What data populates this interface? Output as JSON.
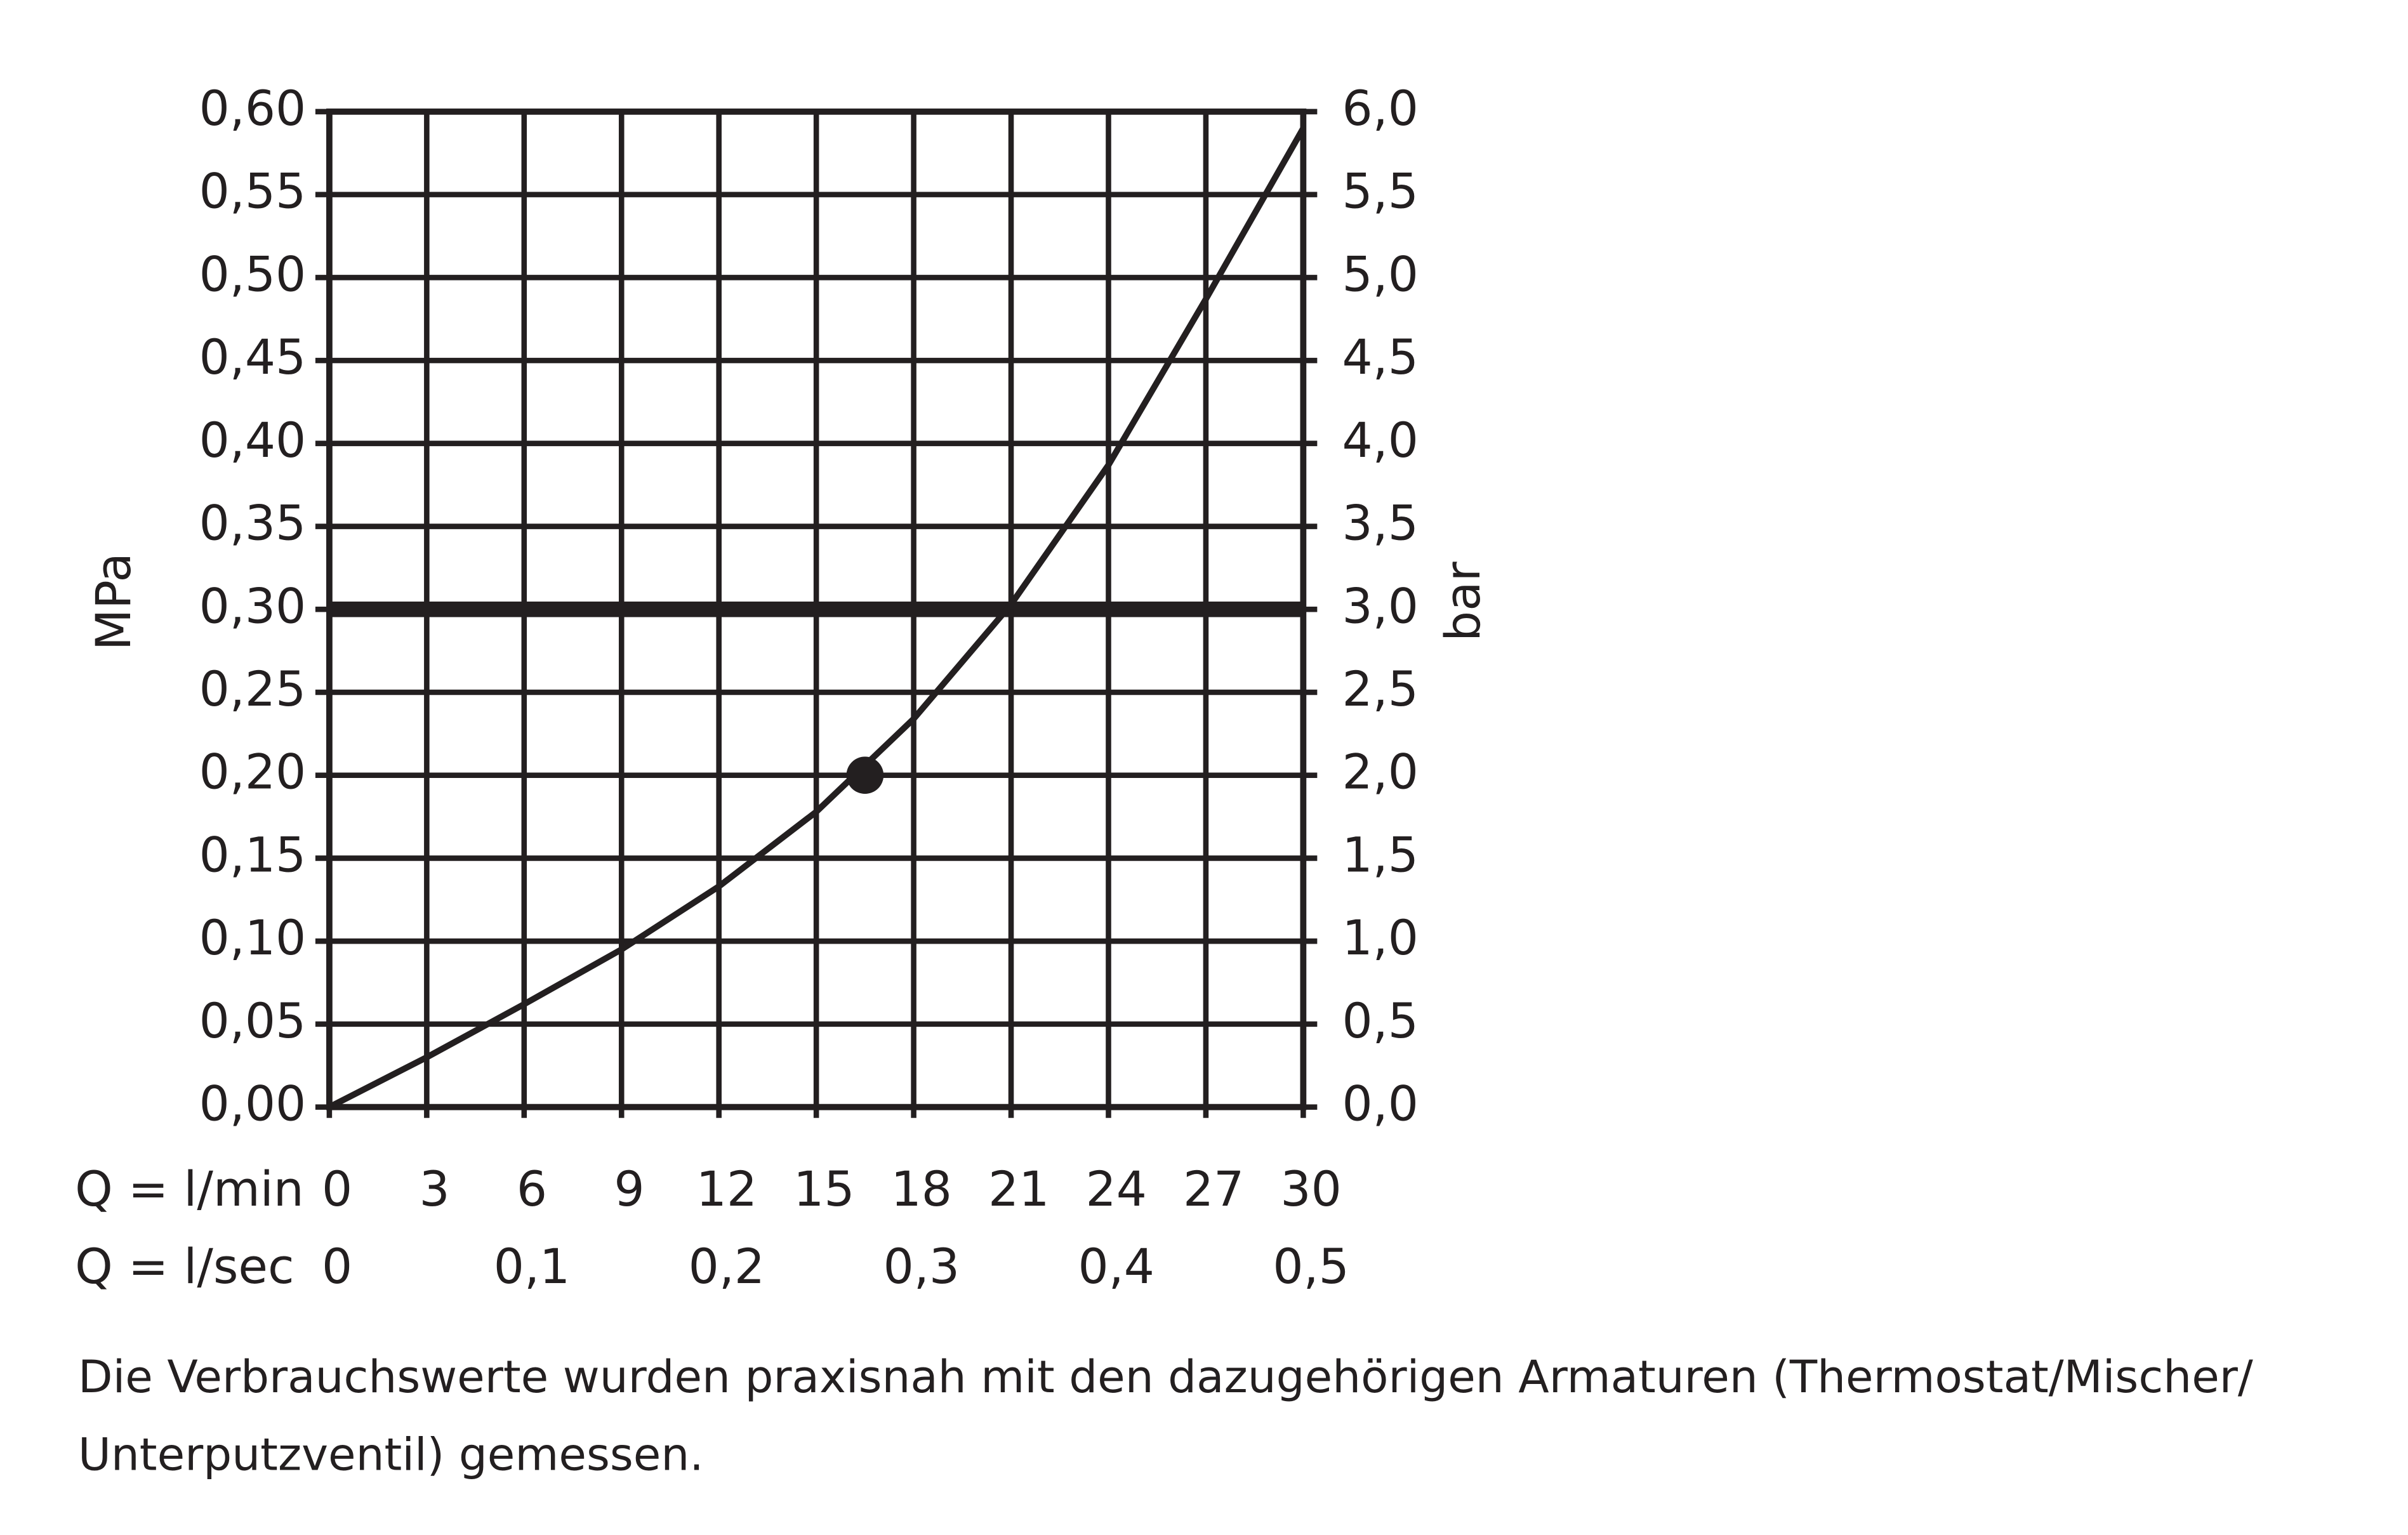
{
  "chart_data": {
    "type": "line",
    "ylabel": "MPa",
    "y2label": "bar",
    "xlabel": "Q = l/min",
    "x2label": "Q = l/sec",
    "x": [
      0,
      3,
      6,
      9,
      12,
      15,
      18,
      21,
      24,
      27,
      30
    ],
    "series": [
      {
        "color": "#231f20",
        "values": [
          0,
          0.03,
          0.062,
          0.095,
          0.133,
          0.178,
          0.234,
          0.303,
          0.387,
          0.487,
          0.59
        ]
      }
    ],
    "marker": {
      "x": 16.5,
      "y": 0.2
    },
    "hline": 0.3,
    "vline": 21,
    "xlim": [
      0,
      30
    ],
    "xticks": [
      0,
      3,
      6,
      9,
      12,
      15,
      18,
      21,
      24,
      27,
      30
    ],
    "x2lim": [
      0,
      0.5
    ],
    "x2ticks": [
      0,
      {
        "value": 0.1,
        "label": "0,1"
      },
      {
        "value": 0.2,
        "label": "0,2"
      },
      {
        "value": 0.3,
        "label": "0,3"
      },
      {
        "value": 0.4,
        "label": "0,4"
      },
      {
        "value": 0.5,
        "label": "0,5"
      }
    ],
    "ylim": [
      0,
      0.6
    ],
    "yticks": [
      {
        "value": 0,
        "label": "0,00"
      },
      {
        "value": 0.05,
        "label": "0,05"
      },
      {
        "value": 0.1,
        "label": "0,10"
      },
      {
        "value": 0.15,
        "label": "0,15"
      },
      {
        "value": 0.2,
        "label": "0,20"
      },
      {
        "value": 0.25,
        "label": "0,25"
      },
      {
        "value": 0.3,
        "label": "0,30"
      },
      {
        "value": 0.35,
        "label": "0,35"
      },
      {
        "value": 0.4,
        "label": "0,40"
      },
      {
        "value": 0.45,
        "label": "0,45"
      },
      {
        "value": 0.5,
        "label": "0,50"
      },
      {
        "value": 0.55,
        "label": "0,55"
      },
      {
        "value": 0.6,
        "label": "0,60"
      }
    ],
    "y2lim": [
      0,
      6
    ],
    "y2ticks": [
      {
        "value": 0,
        "label": "0,0"
      },
      {
        "value": 0.5,
        "label": "0,5"
      },
      {
        "value": 1,
        "label": "1,0"
      },
      {
        "value": 1.5,
        "label": "1,5"
      },
      {
        "value": 2,
        "label": "2,0"
      },
      {
        "value": 2.5,
        "label": "2,5"
      },
      {
        "value": 3,
        "label": "3,0"
      },
      {
        "value": 3.5,
        "label": "3,5"
      },
      {
        "value": 4,
        "label": "4,0"
      },
      {
        "value": 4.5,
        "label": "4,5"
      },
      {
        "value": 5,
        "label": "5,0"
      },
      {
        "value": 5.5,
        "label": "5,5"
      },
      {
        "value": 6,
        "label": "6,0"
      }
    ],
    "grid": true,
    "note_lines": [
      "Die Verbrauchswerte wurden praxisnah mit den dazugehörigen Armaturen (Thermostat/Mischer/",
      "Unterputzventil) gemessen."
    ]
  }
}
